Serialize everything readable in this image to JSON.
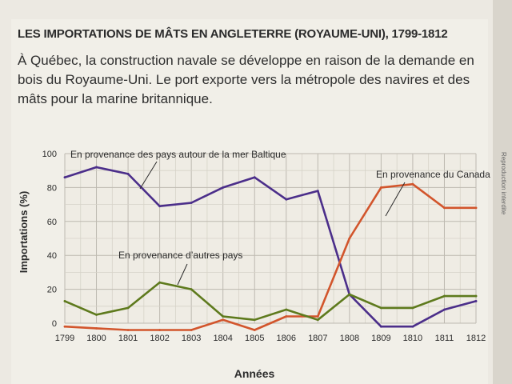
{
  "title": "LES IMPORTATIONS DE MÂTS EN ANGLETERRE (ROYAUME-UNI), 1799-1812",
  "intro": "À Québec, la construction navale se développe en raison de la demande en bois du Royaume-Uni. Le port exporte vers la métropole des navires et des mâts pour la marine britannique.",
  "margin_text": "Reproduction interdite",
  "colors": {
    "baltic": "#4b2e8a",
    "canada": "#d2552c",
    "autres": "#5e7a1d",
    "grid": "#bdb9b0"
  },
  "chart_data": {
    "type": "line",
    "title": "LES IMPORTATIONS DE MÂTS EN ANGLETERRE (ROYAUME-UNI), 1799-1812",
    "xlabel": "Années",
    "ylabel": "Importations (%)",
    "x": [
      "1799",
      "1800",
      "1801",
      "1802",
      "1803",
      "1804",
      "1805",
      "1806",
      "1807",
      "1808",
      "1809",
      "1810",
      "1811",
      "1812"
    ],
    "yticks": [
      "0",
      "20",
      "40",
      "60",
      "80",
      "100"
    ],
    "ylim": [
      0,
      100
    ],
    "grid": true,
    "series": [
      {
        "name": "En provenance des pays autour de la mer Baltique",
        "color": "#4b2e8a",
        "values": [
          86,
          92,
          88,
          69,
          71,
          80,
          86,
          73,
          78,
          17,
          -2,
          -2,
          8,
          13
        ]
      },
      {
        "name": "En provenance du Canada",
        "color": "#d2552c",
        "values": [
          -2,
          -3,
          -4,
          -4,
          -4,
          2,
          -4,
          4,
          4,
          50,
          80,
          82,
          68,
          68
        ]
      },
      {
        "name": "En provenance d’autres pays",
        "color": "#5e7a1d",
        "values": [
          13,
          5,
          9,
          24,
          20,
          4,
          2,
          8,
          2,
          17,
          9,
          9,
          16,
          16
        ]
      }
    ]
  }
}
